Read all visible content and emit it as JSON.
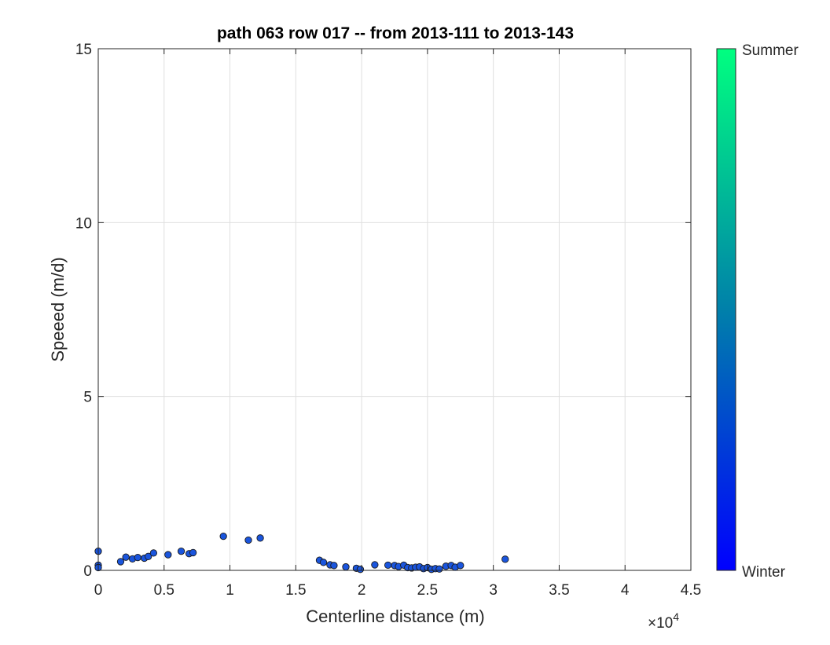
{
  "chart_data": {
    "type": "scatter",
    "title": "path 063 row 017 -- from 2013-111 to 2013-143",
    "xlabel": "Centerline distance (m)",
    "ylabel": "Speeed (m/d)",
    "xlim": [
      0,
      45000
    ],
    "ylim": [
      0,
      15
    ],
    "x_tick_labels": [
      "0",
      "0.5",
      "1",
      "1.5",
      "2",
      "2.5",
      "3",
      "3.5",
      "4",
      "4.5"
    ],
    "x_tick_values": [
      0,
      5000,
      10000,
      15000,
      20000,
      25000,
      30000,
      35000,
      40000,
      45000
    ],
    "x_exponent_label": "×10",
    "x_exponent_power": "4",
    "y_tick_labels": [
      "0",
      "5",
      "10",
      "15"
    ],
    "y_tick_values": [
      0,
      5,
      10,
      15
    ],
    "grid": true,
    "marker_color": "#1a55dd",
    "marker_edge_color": "#1a1a1a",
    "points": [
      {
        "x": 0,
        "y": 0.55
      },
      {
        "x": 0,
        "y": 0.15
      },
      {
        "x": 0,
        "y": 0.08
      },
      {
        "x": 1700,
        "y": 0.25
      },
      {
        "x": 2100,
        "y": 0.38
      },
      {
        "x": 2600,
        "y": 0.33
      },
      {
        "x": 3000,
        "y": 0.37
      },
      {
        "x": 3500,
        "y": 0.35
      },
      {
        "x": 3800,
        "y": 0.4
      },
      {
        "x": 4200,
        "y": 0.5
      },
      {
        "x": 5300,
        "y": 0.45
      },
      {
        "x": 6300,
        "y": 0.55
      },
      {
        "x": 6900,
        "y": 0.48
      },
      {
        "x": 7200,
        "y": 0.51
      },
      {
        "x": 9500,
        "y": 0.98
      },
      {
        "x": 11400,
        "y": 0.87
      },
      {
        "x": 12300,
        "y": 0.93
      },
      {
        "x": 16800,
        "y": 0.29
      },
      {
        "x": 17100,
        "y": 0.23
      },
      {
        "x": 17600,
        "y": 0.16
      },
      {
        "x": 17900,
        "y": 0.14
      },
      {
        "x": 18800,
        "y": 0.1
      },
      {
        "x": 19600,
        "y": 0.06
      },
      {
        "x": 19900,
        "y": 0.03
      },
      {
        "x": 21000,
        "y": 0.16
      },
      {
        "x": 22000,
        "y": 0.15
      },
      {
        "x": 22500,
        "y": 0.14
      },
      {
        "x": 22800,
        "y": 0.11
      },
      {
        "x": 23200,
        "y": 0.15
      },
      {
        "x": 23500,
        "y": 0.08
      },
      {
        "x": 23800,
        "y": 0.07
      },
      {
        "x": 24100,
        "y": 0.09
      },
      {
        "x": 24400,
        "y": 0.1
      },
      {
        "x": 24700,
        "y": 0.05
      },
      {
        "x": 25000,
        "y": 0.08
      },
      {
        "x": 25300,
        "y": 0.03
      },
      {
        "x": 25600,
        "y": 0.05
      },
      {
        "x": 25900,
        "y": 0.04
      },
      {
        "x": 26400,
        "y": 0.12
      },
      {
        "x": 26800,
        "y": 0.14
      },
      {
        "x": 27100,
        "y": 0.09
      },
      {
        "x": 27500,
        "y": 0.14
      },
      {
        "x": 30900,
        "y": 0.32
      }
    ],
    "colorbar": {
      "top_label": "Summer",
      "bottom_label": "Winter",
      "top_color": "#00ff80",
      "mid_color": "#0080aa",
      "bottom_color": "#0000ff"
    }
  }
}
